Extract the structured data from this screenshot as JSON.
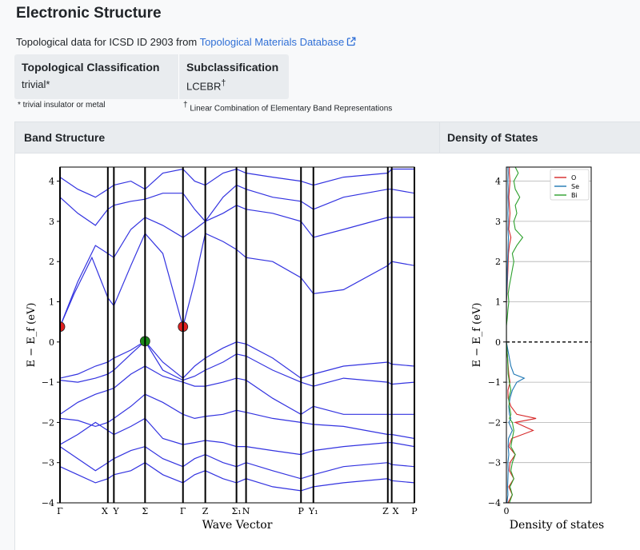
{
  "header": {
    "title": "Electronic Structure",
    "source_prefix": "Topological data for ICSD ID 2903 from",
    "source_link": "Topological Materials Database"
  },
  "classification": {
    "topological_header": "Topological Classification",
    "topological_value": "trivial*",
    "sub_header": "Subclassification",
    "sub_value": "LCEBR",
    "sub_value_sup": "†",
    "note_trivial": "* trivial insulator or metal",
    "note_lcebr_sup": "†",
    "note_lcebr": " Linear Combination of Elementary Band Representations"
  },
  "panels": {
    "band_title": "Band Structure",
    "dos_title": "Density of States"
  },
  "chart_data": [
    {
      "type": "line",
      "title": "Band Structure",
      "xlabel": "Wave Vector",
      "ylabel": "E − E_f (eV)",
      "ylim": [
        -4,
        4.35
      ],
      "yticks": [
        -4,
        -3,
        -2,
        -1,
        0,
        1,
        2,
        3,
        4
      ],
      "kpoint_labels": [
        "Γ",
        "X",
        "Y",
        "Σ",
        "Γ",
        "Z",
        "Σ₁",
        "N",
        "P",
        "Y₁",
        "Z",
        "X",
        "P"
      ],
      "kpoint_positions": [
        0,
        0.135,
        0.152,
        0.24,
        0.347,
        0.41,
        0.498,
        0.525,
        0.68,
        0.715,
        0.925,
        0.936,
        1.0
      ],
      "band_color": "#3333e0",
      "bands": [
        [
          [
            0,
            0.38
          ],
          [
            0.04,
            1.2
          ],
          [
            0.09,
            2.1
          ],
          [
            0.135,
            1.1
          ],
          [
            0.152,
            0.9
          ],
          [
            0.2,
            1.9
          ],
          [
            0.24,
            2.7
          ],
          [
            0.29,
            2.2
          ],
          [
            0.347,
            0.38
          ],
          [
            0.38,
            1.5
          ],
          [
            0.41,
            2.7
          ],
          [
            0.46,
            2.5
          ],
          [
            0.498,
            2.3
          ],
          [
            0.525,
            2.1
          ],
          [
            0.6,
            2.0
          ],
          [
            0.68,
            1.6
          ],
          [
            0.715,
            1.2
          ],
          [
            0.8,
            1.3
          ],
          [
            0.925,
            1.9
          ],
          [
            0.936,
            2.0
          ],
          [
            1.0,
            1.9
          ]
        ],
        [
          [
            0,
            0.38
          ],
          [
            0.05,
            1.5
          ],
          [
            0.1,
            2.4
          ],
          [
            0.135,
            2.2
          ],
          [
            0.152,
            2.1
          ],
          [
            0.2,
            2.8
          ],
          [
            0.24,
            3.1
          ],
          [
            0.29,
            2.9
          ],
          [
            0.347,
            2.6
          ],
          [
            0.38,
            2.8
          ],
          [
            0.41,
            3.0
          ],
          [
            0.46,
            3.2
          ],
          [
            0.498,
            3.4
          ],
          [
            0.525,
            3.3
          ],
          [
            0.6,
            3.2
          ],
          [
            0.68,
            3.0
          ],
          [
            0.715,
            2.6
          ],
          [
            0.8,
            2.8
          ],
          [
            0.925,
            3.1
          ],
          [
            0.936,
            3.1
          ],
          [
            1.0,
            3.1
          ]
        ],
        [
          [
            0,
            3.6
          ],
          [
            0.05,
            3.2
          ],
          [
            0.1,
            2.9
          ],
          [
            0.135,
            3.3
          ],
          [
            0.152,
            3.4
          ],
          [
            0.2,
            3.5
          ],
          [
            0.24,
            3.55
          ],
          [
            0.29,
            3.7
          ],
          [
            0.347,
            3.7
          ],
          [
            0.38,
            3.3
          ],
          [
            0.41,
            3.0
          ],
          [
            0.46,
            3.6
          ],
          [
            0.498,
            3.9
          ],
          [
            0.525,
            3.8
          ],
          [
            0.6,
            3.6
          ],
          [
            0.68,
            3.5
          ],
          [
            0.715,
            3.3
          ],
          [
            0.8,
            3.6
          ],
          [
            0.925,
            3.8
          ],
          [
            0.936,
            3.8
          ],
          [
            1.0,
            3.7
          ]
        ],
        [
          [
            0,
            4.1
          ],
          [
            0.05,
            3.8
          ],
          [
            0.1,
            3.6
          ],
          [
            0.135,
            3.8
          ],
          [
            0.152,
            3.9
          ],
          [
            0.2,
            4.0
          ],
          [
            0.24,
            3.8
          ],
          [
            0.29,
            4.2
          ],
          [
            0.347,
            4.3
          ],
          [
            0.38,
            4.0
          ],
          [
            0.41,
            3.9
          ],
          [
            0.46,
            4.2
          ],
          [
            0.498,
            4.3
          ],
          [
            0.525,
            4.2
          ],
          [
            0.6,
            4.1
          ],
          [
            0.68,
            4.0
          ],
          [
            0.715,
            3.9
          ],
          [
            0.8,
            4.1
          ],
          [
            0.925,
            4.2
          ],
          [
            0.936,
            4.3
          ],
          [
            1.0,
            4.3
          ]
        ],
        [
          [
            0,
            -0.9
          ],
          [
            0.05,
            -0.8
          ],
          [
            0.1,
            -0.6
          ],
          [
            0.135,
            -0.5
          ],
          [
            0.152,
            -0.4
          ],
          [
            0.2,
            -0.2
          ],
          [
            0.24,
            0.02
          ],
          [
            0.29,
            -0.5
          ],
          [
            0.347,
            -0.9
          ],
          [
            0.38,
            -0.6
          ],
          [
            0.41,
            -0.4
          ],
          [
            0.46,
            -0.15
          ],
          [
            0.498,
            0.0
          ],
          [
            0.525,
            -0.05
          ],
          [
            0.6,
            -0.4
          ],
          [
            0.68,
            -0.9
          ],
          [
            0.715,
            -0.8
          ],
          [
            0.8,
            -0.6
          ],
          [
            0.925,
            -0.5
          ],
          [
            0.936,
            -0.55
          ],
          [
            1.0,
            -0.6
          ]
        ],
        [
          [
            0,
            -0.95
          ],
          [
            0.05,
            -1.0
          ],
          [
            0.1,
            -0.9
          ],
          [
            0.135,
            -0.8
          ],
          [
            0.152,
            -0.7
          ],
          [
            0.2,
            -0.3
          ],
          [
            0.24,
            0.02
          ],
          [
            0.29,
            -0.7
          ],
          [
            0.347,
            -0.95
          ],
          [
            0.38,
            -0.85
          ],
          [
            0.41,
            -0.7
          ],
          [
            0.46,
            -0.5
          ],
          [
            0.498,
            -0.3
          ],
          [
            0.525,
            -0.35
          ],
          [
            0.6,
            -0.7
          ],
          [
            0.68,
            -1.0
          ],
          [
            0.715,
            -1.1
          ],
          [
            0.8,
            -0.9
          ],
          [
            0.925,
            -1.0
          ],
          [
            0.936,
            -1.05
          ],
          [
            1.0,
            -1.0
          ]
        ],
        [
          [
            0,
            -1.8
          ],
          [
            0.05,
            -1.5
          ],
          [
            0.1,
            -1.3
          ],
          [
            0.135,
            -1.2
          ],
          [
            0.152,
            -1.15
          ],
          [
            0.2,
            -0.8
          ],
          [
            0.24,
            -0.6
          ],
          [
            0.29,
            -0.85
          ],
          [
            0.347,
            -1.0
          ],
          [
            0.38,
            -1.1
          ],
          [
            0.41,
            -1.1
          ],
          [
            0.46,
            -1.0
          ],
          [
            0.498,
            -0.9
          ],
          [
            0.525,
            -0.95
          ],
          [
            0.6,
            -1.4
          ],
          [
            0.68,
            -1.8
          ],
          [
            0.715,
            -1.6
          ],
          [
            0.8,
            -1.8
          ],
          [
            0.925,
            -1.8
          ],
          [
            0.936,
            -1.8
          ],
          [
            1.0,
            -1.8
          ]
        ],
        [
          [
            0,
            -1.9
          ],
          [
            0.05,
            -1.95
          ],
          [
            0.1,
            -2.1
          ],
          [
            0.135,
            -2.0
          ],
          [
            0.152,
            -1.9
          ],
          [
            0.2,
            -1.6
          ],
          [
            0.24,
            -1.3
          ],
          [
            0.29,
            -1.5
          ],
          [
            0.347,
            -1.8
          ],
          [
            0.38,
            -1.9
          ],
          [
            0.41,
            -1.85
          ],
          [
            0.46,
            -1.8
          ],
          [
            0.498,
            -1.7
          ],
          [
            0.525,
            -1.75
          ],
          [
            0.6,
            -1.9
          ],
          [
            0.68,
            -2.0
          ],
          [
            0.715,
            -2.05
          ],
          [
            0.8,
            -2.1
          ],
          [
            0.925,
            -2.3
          ],
          [
            0.936,
            -2.3
          ],
          [
            1.0,
            -2.4
          ]
        ],
        [
          [
            0,
            -2.55
          ],
          [
            0.05,
            -2.3
          ],
          [
            0.1,
            -2.0
          ],
          [
            0.135,
            -2.2
          ],
          [
            0.152,
            -2.3
          ],
          [
            0.2,
            -2.1
          ],
          [
            0.24,
            -1.9
          ],
          [
            0.29,
            -2.4
          ],
          [
            0.347,
            -2.55
          ],
          [
            0.38,
            -2.5
          ],
          [
            0.41,
            -2.45
          ],
          [
            0.46,
            -2.5
          ],
          [
            0.498,
            -2.6
          ],
          [
            0.525,
            -2.6
          ],
          [
            0.6,
            -2.7
          ],
          [
            0.68,
            -2.8
          ],
          [
            0.715,
            -2.7
          ],
          [
            0.8,
            -2.6
          ],
          [
            0.925,
            -2.5
          ],
          [
            0.936,
            -2.5
          ],
          [
            1.0,
            -2.6
          ]
        ],
        [
          [
            0,
            -2.6
          ],
          [
            0.05,
            -2.9
          ],
          [
            0.1,
            -3.2
          ],
          [
            0.135,
            -3.0
          ],
          [
            0.152,
            -2.9
          ],
          [
            0.2,
            -2.7
          ],
          [
            0.24,
            -2.6
          ],
          [
            0.29,
            -2.9
          ],
          [
            0.347,
            -3.1
          ],
          [
            0.38,
            -2.9
          ],
          [
            0.41,
            -2.8
          ],
          [
            0.46,
            -3.0
          ],
          [
            0.498,
            -3.1
          ],
          [
            0.525,
            -3.0
          ],
          [
            0.6,
            -3.2
          ],
          [
            0.68,
            -3.4
          ],
          [
            0.715,
            -3.3
          ],
          [
            0.8,
            -3.1
          ],
          [
            0.925,
            -3.0
          ],
          [
            0.936,
            -3.05
          ],
          [
            1.0,
            -3.1
          ]
        ],
        [
          [
            0,
            -3.1
          ],
          [
            0.05,
            -3.3
          ],
          [
            0.1,
            -3.5
          ],
          [
            0.135,
            -3.4
          ],
          [
            0.152,
            -3.3
          ],
          [
            0.2,
            -3.2
          ],
          [
            0.24,
            -3.0
          ],
          [
            0.29,
            -3.3
          ],
          [
            0.347,
            -3.5
          ],
          [
            0.38,
            -3.3
          ],
          [
            0.41,
            -3.2
          ],
          [
            0.46,
            -3.4
          ],
          [
            0.498,
            -3.5
          ],
          [
            0.525,
            -3.4
          ],
          [
            0.6,
            -3.6
          ],
          [
            0.68,
            -3.7
          ],
          [
            0.715,
            -3.6
          ],
          [
            0.8,
            -3.5
          ],
          [
            0.925,
            -3.4
          ],
          [
            0.936,
            -3.45
          ],
          [
            1.0,
            -3.5
          ]
        ]
      ],
      "markers": [
        {
          "x": 0,
          "y": 0.38,
          "color": "#e02020"
        },
        {
          "x": 0.24,
          "y": 0.02,
          "color": "#1a8a1a"
        },
        {
          "x": 0.347,
          "y": 0.38,
          "color": "#e02020"
        }
      ]
    },
    {
      "type": "line",
      "title": "Density of States",
      "xlabel": "Density of states",
      "ylabel": "E − E_f (eV)",
      "ylim": [
        -4,
        4.35
      ],
      "yticks": [
        -4,
        -3,
        -2,
        -1,
        0,
        1,
        2,
        3,
        4
      ],
      "xticks": [
        0
      ],
      "xlim": [
        0,
        1
      ],
      "grid": true,
      "legend_position": "top-right",
      "fermi_level": 0,
      "y_grid": [
        -4,
        -3.8,
        -3.6,
        -3.4,
        -3.2,
        -3.0,
        -2.8,
        -2.6,
        -2.4,
        -2.2,
        -2.0,
        -1.9,
        -1.8,
        -1.6,
        -1.4,
        -1.2,
        -1.0,
        -0.9,
        -0.8,
        -0.6,
        -0.4,
        -0.2,
        0.0,
        0.2,
        0.4,
        0.6,
        0.8,
        1.0,
        1.2,
        1.4,
        1.6,
        1.8,
        2.0,
        2.2,
        2.4,
        2.6,
        2.8,
        3.0,
        3.2,
        3.4,
        3.6,
        3.8,
        4.0,
        4.2,
        4.35
      ],
      "series": [
        {
          "name": "O",
          "color": "#d62728",
          "values": [
            0.05,
            0.2,
            0.08,
            0.25,
            0.1,
            0.12,
            0.3,
            0.08,
            0.18,
            0.9,
            0.3,
            1.0,
            0.35,
            0.15,
            0.06,
            0.05,
            0.12,
            0.1,
            0.08,
            0.06,
            0.04,
            0.02,
            0.0,
            0.0,
            0.0,
            0.0,
            0.0,
            0.0,
            0.02,
            0.03,
            0.04,
            0.05,
            0.06,
            0.07,
            0.1,
            0.15,
            0.08,
            0.1,
            0.12,
            0.1,
            0.08,
            0.1,
            0.12,
            0.1,
            0.1
          ]
        },
        {
          "name": "Se",
          "color": "#1f77b4",
          "values": [
            0.02,
            0.05,
            0.04,
            0.05,
            0.06,
            0.05,
            0.08,
            0.06,
            0.07,
            0.2,
            0.08,
            0.15,
            0.1,
            0.08,
            0.12,
            0.2,
            0.35,
            0.6,
            0.25,
            0.15,
            0.1,
            0.05,
            0.0,
            0.0,
            0.0,
            0.0,
            0.0,
            0.0,
            0.01,
            0.02,
            0.03,
            0.03,
            0.04,
            0.05,
            0.06,
            0.07,
            0.05,
            0.06,
            0.05,
            0.06,
            0.05,
            0.06,
            0.05,
            0.06,
            0.05
          ]
        },
        {
          "name": "Bi",
          "color": "#2ca02c",
          "values": [
            0.1,
            0.2,
            0.12,
            0.25,
            0.15,
            0.2,
            0.3,
            0.15,
            0.2,
            0.25,
            0.2,
            0.1,
            0.15,
            0.1,
            0.08,
            0.15,
            0.1,
            0.08,
            0.06,
            0.05,
            0.04,
            0.02,
            0.0,
            0.0,
            0.0,
            0.03,
            0.05,
            0.08,
            0.06,
            0.1,
            0.15,
            0.2,
            0.25,
            0.2,
            0.35,
            0.55,
            0.3,
            0.25,
            0.35,
            0.3,
            0.45,
            0.3,
            0.25,
            0.4,
            0.3
          ]
        }
      ]
    }
  ]
}
